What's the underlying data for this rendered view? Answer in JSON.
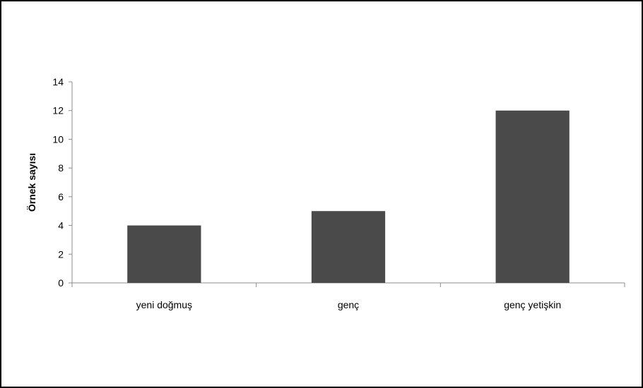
{
  "chart_data": {
    "type": "bar",
    "categories": [
      "yeni doğmuş",
      "genç",
      "genç yetişkin"
    ],
    "values": [
      4,
      5,
      12
    ],
    "title": "",
    "xlabel": "",
    "ylabel": "Örnek sayısı",
    "ylim": [
      0,
      14
    ],
    "yticks": [
      0,
      2,
      4,
      6,
      8,
      10,
      12,
      14
    ],
    "bar_color": "#4a4a4a",
    "grid": false,
    "legend": "none"
  }
}
